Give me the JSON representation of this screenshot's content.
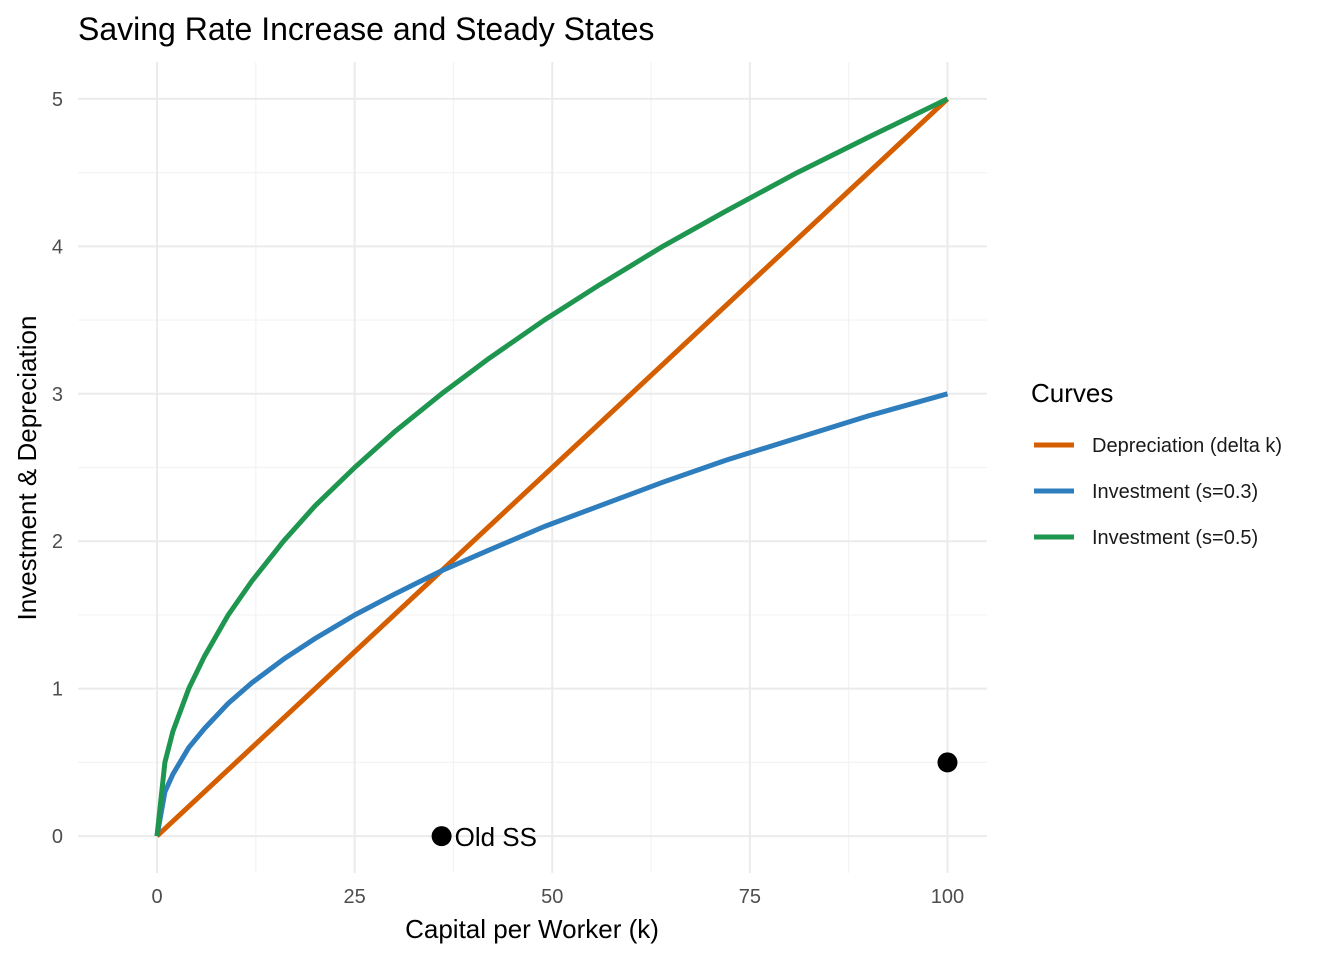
{
  "chart_data": {
    "type": "line",
    "title": "Saving Rate Increase and Steady States",
    "xlabel": "Capital per Worker (k)",
    "ylabel": "Investment & Depreciation",
    "xlim": [
      -10,
      105
    ],
    "ylim": [
      -0.25,
      5.25
    ],
    "x_ticks": [
      0,
      25,
      50,
      75,
      100
    ],
    "y_ticks": [
      0,
      1,
      2,
      3,
      4,
      5
    ],
    "x_tick_labels": [
      "0",
      "25",
      "50",
      "75",
      "100"
    ],
    "y_tick_labels": [
      "0",
      "1",
      "2",
      "3",
      "4",
      "5"
    ],
    "grid": true,
    "legend": {
      "title": "Curves",
      "position": "right"
    },
    "series": [
      {
        "name": "Depreciation (delta k)",
        "color": "#D55E00",
        "x": [
          0,
          100
        ],
        "y": [
          0,
          5
        ]
      },
      {
        "name": "Investment (s=0.3)",
        "color": "#2E7EBE",
        "x": [
          0,
          1,
          2,
          4,
          6,
          9,
          12,
          16,
          20,
          25,
          30,
          36,
          42,
          49,
          56,
          64,
          72,
          81,
          90,
          100
        ],
        "y": [
          0,
          0.3,
          0.42,
          0.6,
          0.73,
          0.9,
          1.04,
          1.2,
          1.34,
          1.5,
          1.64,
          1.8,
          1.94,
          2.1,
          2.24,
          2.4,
          2.55,
          2.7,
          2.85,
          3.0
        ]
      },
      {
        "name": "Investment (s=0.5)",
        "color": "#1E9650",
        "x": [
          0,
          1,
          2,
          4,
          6,
          9,
          12,
          16,
          20,
          25,
          30,
          36,
          42,
          49,
          56,
          64,
          72,
          81,
          90,
          100
        ],
        "y": [
          0,
          0.5,
          0.71,
          1.0,
          1.22,
          1.5,
          1.73,
          2.0,
          2.24,
          2.5,
          2.74,
          3.0,
          3.24,
          3.5,
          3.74,
          4.0,
          4.24,
          4.5,
          4.74,
          5.0
        ]
      }
    ],
    "points": [
      {
        "x": 36,
        "y": 0,
        "label": "Old SS"
      },
      {
        "x": 100,
        "y": 0.5,
        "label": ""
      }
    ]
  }
}
